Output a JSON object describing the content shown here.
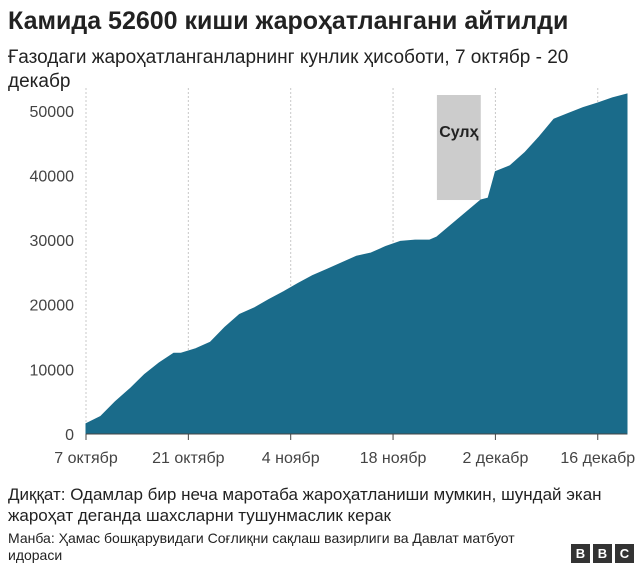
{
  "title": "Камида 52600 киши жароҳатлангани айтилди",
  "subtitle": "Ғазодаги жароҳатланганларнинг кунлик ҳисоботи, 7 октябр - 20 декабр",
  "note": "Диққат: Одамлар бир неча маротаба жароҳатланиши мумкин, шундай экан жароҳат деганда шахсларни тушунмаслик керак",
  "source": "Манба: Ҳамас бошқарувидаги Соғлиқни сақлаш вазирлиги ва Давлат матбуот идораси",
  "logo": [
    "B",
    "B",
    "C"
  ],
  "colors": {
    "area": "#1a6b8a",
    "ceasefire": "#cccccc",
    "grid": "#c8c8c8",
    "axis": "#444444"
  },
  "chart_data": {
    "type": "area",
    "title": "Камида 52600 киши жароҳатлангани айтилди",
    "xlabel": "",
    "ylabel": "",
    "ylim": [
      0,
      52600
    ],
    "xlim": [
      "2023-10-07",
      "2023-12-20"
    ],
    "yticks": [
      0,
      10000,
      20000,
      30000,
      40000,
      50000
    ],
    "ytick_labels": [
      "0",
      "10000",
      "20000",
      "30000",
      "40000",
      "50000"
    ],
    "xticks": [
      "2023-10-07",
      "2023-10-21",
      "2023-11-04",
      "2023-11-18",
      "2023-12-02",
      "2023-12-16"
    ],
    "xtick_labels": [
      "7 октябр",
      "21 октябр",
      "4 ноябр",
      "18 ноябр",
      "2 декабр",
      "16 декабр"
    ],
    "grid": "vertical",
    "series": [
      {
        "x": [
          "2023-10-07",
          "2023-10-09",
          "2023-10-11",
          "2023-10-13",
          "2023-10-15",
          "2023-10-17",
          "2023-10-19",
          "2023-10-20",
          "2023-10-22",
          "2023-10-24",
          "2023-10-26",
          "2023-10-28",
          "2023-10-30",
          "2023-11-01",
          "2023-11-03",
          "2023-11-05",
          "2023-11-07",
          "2023-11-09",
          "2023-11-11",
          "2023-11-13",
          "2023-11-15",
          "2023-11-17",
          "2023-11-19",
          "2023-11-21",
          "2023-11-23",
          "2023-11-24",
          "2023-11-30",
          "2023-12-01",
          "2023-12-02",
          "2023-12-04",
          "2023-12-06",
          "2023-12-08",
          "2023-12-10",
          "2023-12-12",
          "2023-12-14",
          "2023-12-16",
          "2023-12-18",
          "2023-12-20"
        ],
        "y": [
          1600,
          2700,
          5000,
          7000,
          9200,
          11000,
          12500,
          12500,
          13200,
          14200,
          16500,
          18500,
          19500,
          20800,
          22000,
          23300,
          24500,
          25500,
          26500,
          27500,
          28000,
          29000,
          29800,
          30000,
          30000,
          30500,
          36200,
          36500,
          40600,
          41500,
          43500,
          46000,
          48700,
          49600,
          50500,
          51200,
          52000,
          52600
        ]
      }
    ],
    "annotations": [
      {
        "label": "Сулҳ",
        "x_start": "2023-11-24",
        "x_end": "2023-11-30"
      }
    ]
  }
}
